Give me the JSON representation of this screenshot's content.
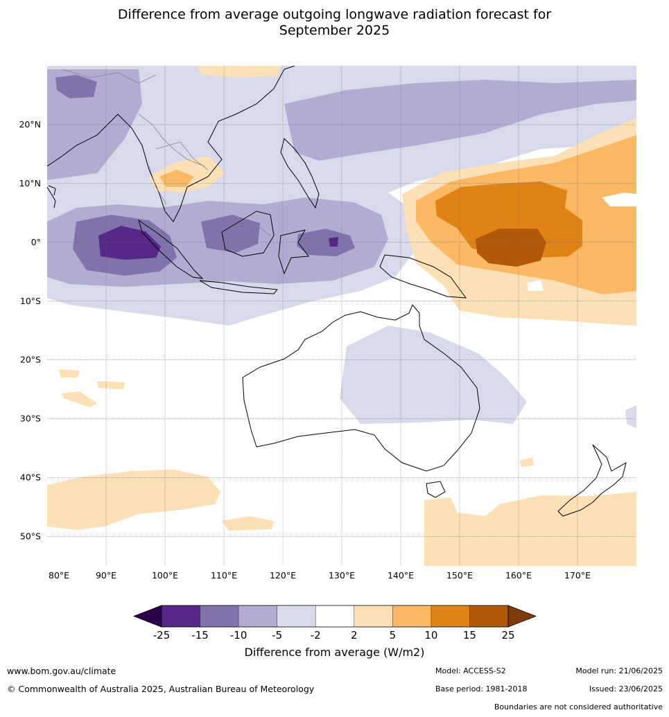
{
  "title": {
    "line1": "Difference from average outgoing longwave radiation forecast for",
    "line2": "September 2025"
  },
  "map": {
    "lon_range": [
      80,
      180
    ],
    "lat_range": [
      -55,
      30
    ],
    "lon_ticks": [
      "80°E",
      "90°E",
      "100°E",
      "110°E",
      "120°E",
      "130°E",
      "140°E",
      "150°E",
      "160°E",
      "170°E"
    ],
    "lat_ticks": [
      "20°N",
      "10°N",
      "0°",
      "10°S",
      "20°S",
      "30°S",
      "40°S",
      "50°S"
    ],
    "grid": true
  },
  "colorbar": {
    "labels": [
      "-25",
      "-15",
      "-10",
      "-5",
      "-2",
      "2",
      "5",
      "10",
      "15",
      "25"
    ],
    "colors": [
      "#2d004b",
      "#542788",
      "#8073ac",
      "#b2abd2",
      "#d8daeb",
      "#ffffff",
      "#fee0b6",
      "#fdb863",
      "#e08214",
      "#b35806",
      "#7f3b08"
    ],
    "title": "Difference from average (W/m2)"
  },
  "footer": {
    "website": "www.bom.gov.au/climate",
    "copyright": "© Commonwealth of Australia 2025, Australian Bureau of Meteorology",
    "model": "Model: ACCESS-S2",
    "base_period": "Base period: 1981-2018",
    "model_run": "Model run: 21/06/2025",
    "issued": "Issued: 23/06/2025",
    "disclaimer": "Boundaries are not considered authoritative"
  }
}
